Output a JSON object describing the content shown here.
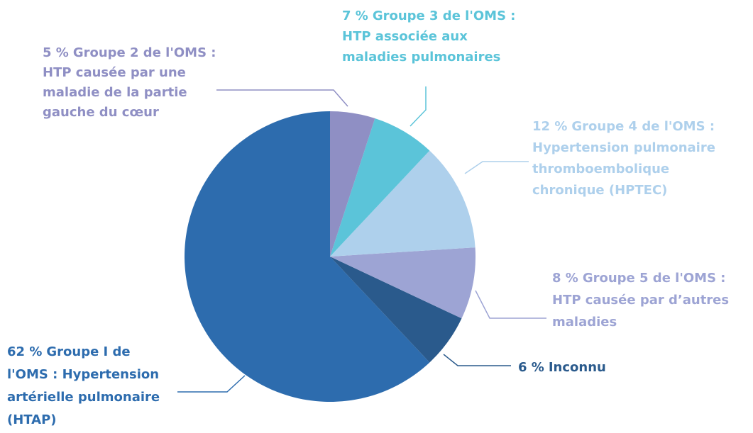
{
  "chart_data": {
    "type": "pie",
    "categories": [
      [
        "Groupe 2 de l'OMS :",
        "HTP causée par une",
        "maladie de la partie",
        "gauche du cœur"
      ],
      [
        "Groupe 3 de l'OMS :",
        "HTP associée aux",
        "maladies pulmonaires"
      ],
      [
        "Groupe 4 de l'OMS :",
        "Hypertension pulmonaire",
        "thromboembolique",
        "chronique (HPTEC)"
      ],
      [
        "Groupe 5 de l'OMS :",
        "HTP causée par d’autres",
        "maladies"
      ],
      [
        "Inconnu"
      ],
      [
        "Groupe I de",
        "l'OMS : Hypertension",
        "artérielle pulmonaire",
        "(HTAP)"
      ]
    ],
    "values": [
      5,
      7,
      12,
      8,
      6,
      62
    ],
    "value_labels": [
      "5 %",
      "7 %",
      "12 %",
      "8 %",
      "6 %",
      "62 %"
    ],
    "colors": [
      "#8f8fc4",
      "#5bc4d9",
      "#aed0ec",
      "#9da4d4",
      "#2a5a8c",
      "#2d6cae"
    ]
  }
}
